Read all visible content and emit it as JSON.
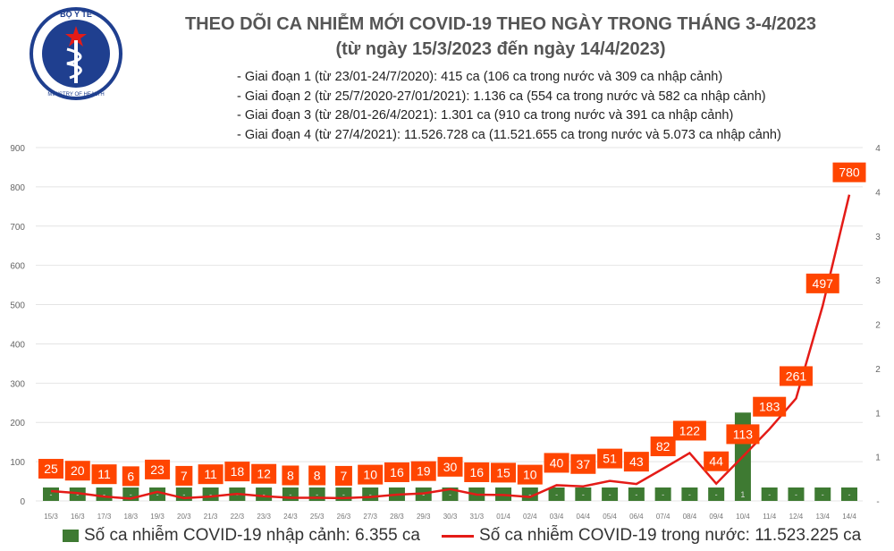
{
  "header": {
    "logo_text": "BỘ Y TẾ · MINISTRY OF HEALTH",
    "title": "THEO DÕI CA NHIỄM MỚI COVID-19 THEO NGÀY TRONG THÁNG 3-4/2023",
    "subtitle": "(từ ngày 15/3/2023 đến ngày 14/4/2023)",
    "notes": [
      "- Giai đoạn 1 (từ 23/01-24/7/2020): 415 ca (106 ca trong nước và 309 ca nhập cảnh)",
      "- Giai đoạn 2 (từ 25/7/2020-27/01/2021): 1.136 ca (554 ca trong nước và 582 ca nhập cảnh)",
      "- Giai đoạn 3 (từ 28/01-26/4/2021): 1.301 ca (910 ca trong nước và 391 ca nhập cảnh)",
      "- Giai đoạn 4 (từ 27/4/2021): 11.526.728 ca (11.521.655 ca trong nước và 5.073 ca nhập cảnh)"
    ]
  },
  "chart_data": {
    "type": "bar+line",
    "categories": [
      "15/3",
      "16/3",
      "17/3",
      "18/3",
      "19/3",
      "20/3",
      "21/3",
      "22/3",
      "23/3",
      "24/3",
      "25/3",
      "26/3",
      "27/3",
      "28/3",
      "29/3",
      "30/3",
      "31/3",
      "01/4",
      "02/4",
      "03/4",
      "04/4",
      "05/4",
      "06/4",
      "07/4",
      "08/4",
      "09/4",
      "10/4",
      "11/4",
      "12/4",
      "13/4",
      "14/4"
    ],
    "series": [
      {
        "name": "Số ca nhiễm COVID-19 nhập cảnh: 6.355 ca",
        "type": "bar",
        "axis": "right",
        "color": "#3e7a32",
        "values": [
          0,
          0,
          0,
          0,
          0,
          0,
          0,
          0,
          0,
          0,
          0,
          0,
          0,
          0,
          0,
          0,
          0,
          0,
          0,
          0,
          0,
          0,
          0,
          0,
          0,
          0,
          1,
          0,
          0,
          0,
          0
        ],
        "labels": [
          "-",
          "-",
          "-",
          "-",
          "-",
          "-",
          "-",
          "-",
          "-",
          "-",
          "-",
          "-",
          "-",
          "-",
          "-",
          "-",
          "-",
          "-",
          "-",
          "-",
          "-",
          "-",
          "-",
          "-",
          "-",
          "-",
          "1",
          "-",
          "-",
          "-",
          "-"
        ]
      },
      {
        "name": "Số ca nhiễm COVID-19 trong nước: 11.523.225 ca",
        "type": "line",
        "axis": "left",
        "color": "#e41b17",
        "label_color": "#ff4500",
        "values": [
          25,
          20,
          11,
          6,
          23,
          7,
          11,
          18,
          12,
          8,
          8,
          7,
          10,
          16,
          19,
          30,
          16,
          15,
          10,
          40,
          37,
          51,
          43,
          82,
          122,
          44,
          113,
          183,
          261,
          497,
          780
        ]
      }
    ],
    "y_left": {
      "range": [
        0,
        900
      ],
      "ticks": [
        "0",
        "100",
        "200",
        "300",
        "400",
        "500",
        "600",
        "700",
        "800",
        "900"
      ]
    },
    "y_right": {
      "range": [
        0,
        4
      ],
      "ticks": [
        "-",
        "1",
        "1",
        "2",
        "2",
        "3",
        "3",
        "4",
        "4"
      ]
    },
    "grid": true,
    "legend": "bottom"
  }
}
